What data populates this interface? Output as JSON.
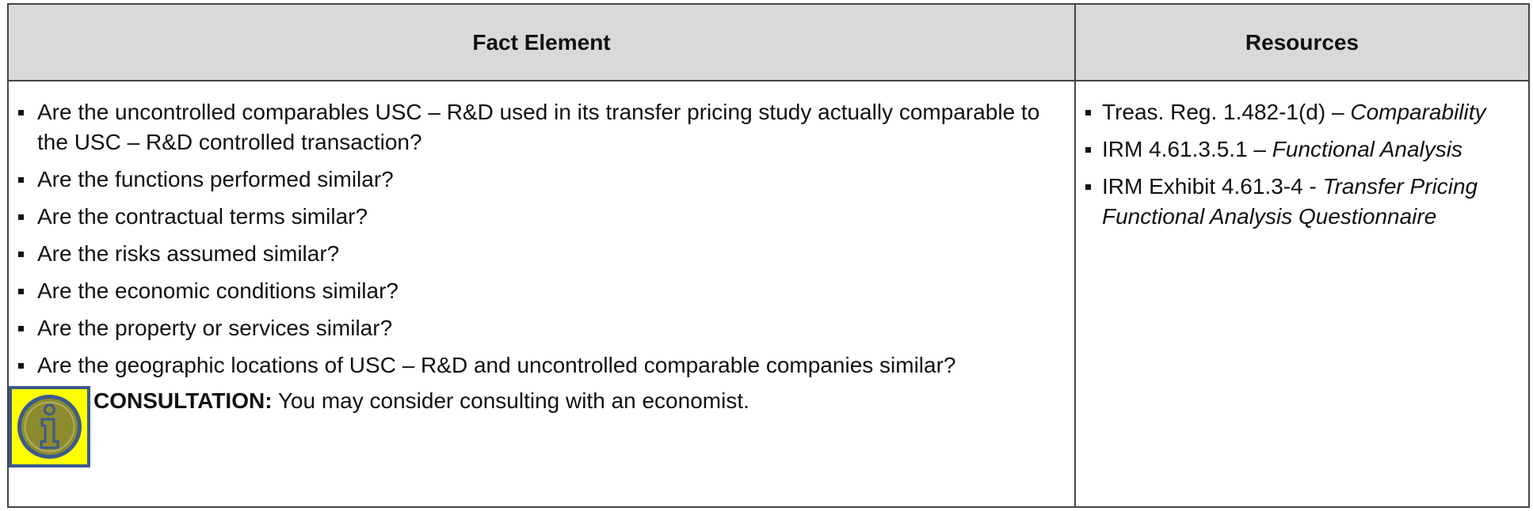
{
  "header": {
    "fact_element": "Fact Element",
    "resources": "Resources"
  },
  "fact_items": [
    "Are the uncontrolled comparables USC – R&D used in its transfer pricing study actually comparable to the USC – R&D controlled transaction?",
    "Are the functions performed similar?",
    "Are the contractual terms similar?",
    "Are the risks assumed similar?",
    "Are the economic conditions similar?",
    "Are the property or services similar?",
    "Are the geographic locations of USC – R&D and uncontrolled comparable companies similar?"
  ],
  "consultation": {
    "label": "CONSULTATION:",
    "text": "You may consider consulting with an economist."
  },
  "resources": [
    {
      "text": "Treas. Reg. 1.482-1(d) –",
      "italic": "Comparability"
    },
    {
      "text": "IRM 4.61.3.5.1 –",
      "italic": "Functional Analysis"
    },
    {
      "text": "IRM Exhibit 4.61.3-4 -",
      "italic": "Transfer Pricing Functional Analysis Questionnaire"
    }
  ]
}
